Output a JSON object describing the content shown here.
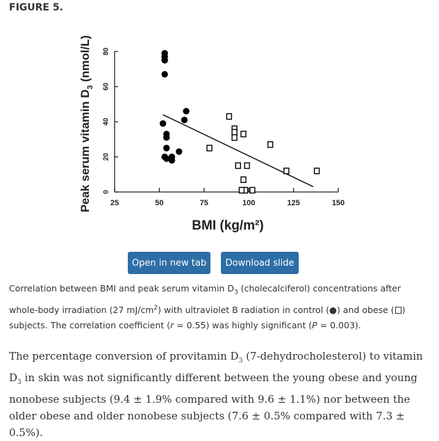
{
  "figure_label": "FIGURE 5.",
  "chart_data": {
    "type": "scatter",
    "xlabel": "BMI (kg/m²)",
    "ylabel_prefix": "Peak serum vitamin D",
    "ylabel_sub": "3",
    "ylabel_suffix": " (nmol/L)",
    "xlim": [
      25,
      150
    ],
    "ylim": [
      0,
      80
    ],
    "xticks": [
      25,
      50,
      75,
      100,
      125,
      150
    ],
    "yticks": [
      0,
      20,
      40,
      60,
      80
    ],
    "series": [
      {
        "name": "control",
        "marker": "filled-circle",
        "x": [
          53,
          53,
          53,
          53,
          65,
          64,
          52,
          54,
          54,
          54,
          53,
          54,
          57,
          57,
          61
        ],
        "y": [
          79,
          77,
          67,
          75,
          46,
          41,
          39,
          33,
          31,
          25,
          20,
          19,
          18,
          20,
          23
        ]
      },
      {
        "name": "obese",
        "marker": "open-square",
        "x": [
          89,
          92,
          92,
          92,
          97,
          112,
          78,
          94,
          99,
          97,
          102,
          98,
          96,
          121,
          138
        ],
        "y": [
          43,
          36,
          34,
          31,
          33,
          27,
          25,
          15,
          15,
          7,
          1,
          1,
          1,
          12,
          12
        ]
      }
    ],
    "regression_line": {
      "x": [
        52,
        136
      ],
      "y": [
        44,
        3
      ]
    }
  },
  "buttons": {
    "open_tab": "Open in new tab",
    "download": "Download slide"
  },
  "caption": {
    "p1": "Correlation between BMI and peak serum vitamin D",
    "sub1": "3",
    "p2": " (cholecalciferol) concentrations after whole-body irradiation (27 mJ/cm",
    "sup1": "2",
    "p3": ") with ultraviolet B radiation in control (",
    "dot_symbol": "●",
    "p4": ") and obese (",
    "p5": ") subjects. The correlation coefficient (",
    "r_var": "r",
    "r_val": " = 0.55) was highly significant (",
    "p_var": "P",
    "p_val": " = 0.003)."
  },
  "paragraph": {
    "t1": "The percentage conversion of provitamin D",
    "s1": "3",
    "t2": " (7-dehydrocholesterol) to vitamin D",
    "s2": "3",
    "t3": " in skin was not significantly different between the young obese and young nonobese subjects (9.4 ± 1.9% compared with 9.6 ± 1.1%) nor between the older obese and older nonobese subjects (7.6 ± 0.5% compared with 7.3 ± 0.5%)."
  }
}
